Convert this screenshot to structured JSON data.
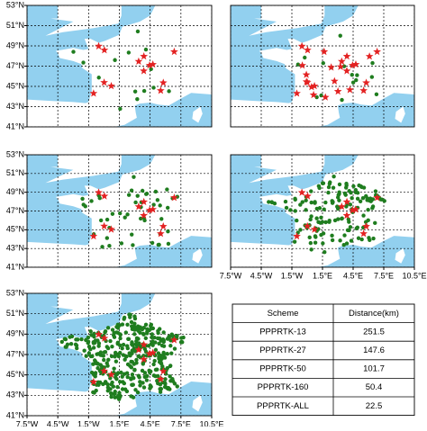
{
  "lat_ticks": [
    {
      "value": 53,
      "label": "53°N"
    },
    {
      "value": 51,
      "label": "51°N"
    },
    {
      "value": 49,
      "label": "49°N"
    },
    {
      "value": 47,
      "label": "47°N"
    },
    {
      "value": 45,
      "label": "45°N"
    },
    {
      "value": 43,
      "label": "43°N"
    },
    {
      "value": 41,
      "label": "41°N"
    }
  ],
  "lon_ticks": [
    {
      "value": -7.5,
      "label": "7.5°W"
    },
    {
      "value": -4.5,
      "label": "4.5°W"
    },
    {
      "value": -1.5,
      "label": "1.5°W"
    },
    {
      "value": 1.5,
      "label": "1.5°E"
    },
    {
      "value": 4.5,
      "label": "4.5°E"
    },
    {
      "value": 7.5,
      "label": "7.5°E"
    },
    {
      "value": 10.5,
      "label": "10.5°E"
    }
  ],
  "table": {
    "header": [
      "Scheme",
      "Distance(km)"
    ],
    "rows": [
      [
        "PPPRTK-13",
        "251.5"
      ],
      [
        "PPPRTK-27",
        "147.6"
      ],
      [
        "PPPRTK-50",
        "101.7"
      ],
      [
        "PPPRTK-160",
        "50.4"
      ],
      [
        "PPPRTK-ALL",
        "22.5"
      ]
    ]
  }
}
